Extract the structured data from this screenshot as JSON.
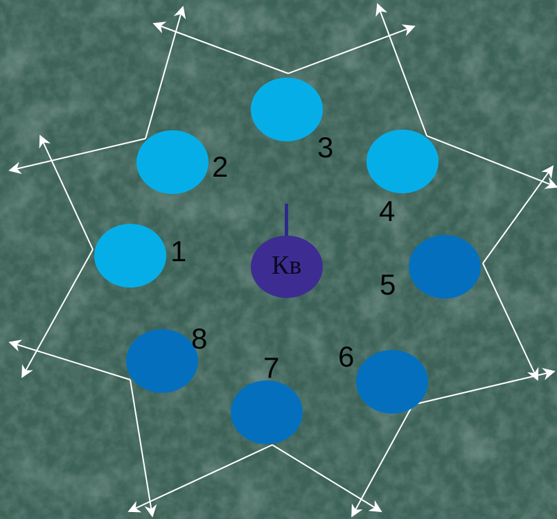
{
  "center": {
    "label": "Кв",
    "color": "#3d2d92"
  },
  "colors": {
    "light_plot": "#06aee8",
    "dark_plot": "#0470bd",
    "arrows": "#ffffff",
    "forest": "#3e6358"
  },
  "plots": [
    {
      "number": "1",
      "shade": "light"
    },
    {
      "number": "2",
      "shade": "light"
    },
    {
      "number": "3",
      "shade": "light"
    },
    {
      "number": "4",
      "shade": "light"
    },
    {
      "number": "5",
      "shade": "dark"
    },
    {
      "number": "6",
      "shade": "dark"
    },
    {
      "number": "7",
      "shade": "dark"
    },
    {
      "number": "8",
      "shade": "dark"
    }
  ]
}
